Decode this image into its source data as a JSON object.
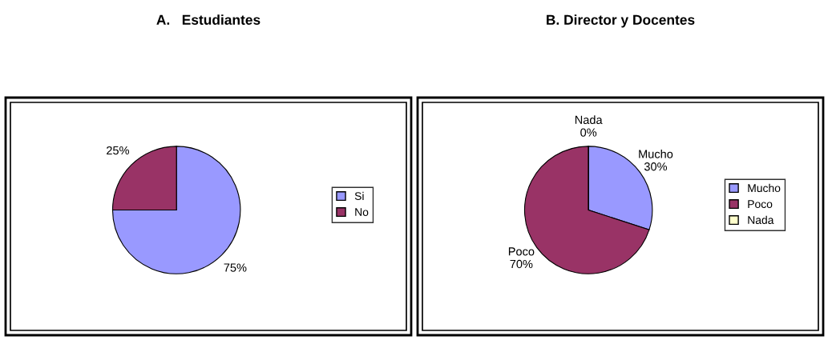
{
  "chart_data": [
    {
      "type": "pie",
      "title": "A.   Estudiantes",
      "categories": [
        "Si",
        "No"
      ],
      "values": [
        75,
        25
      ],
      "colors": [
        "#9999ff",
        "#993366"
      ],
      "value_labels": [
        "75%",
        "25%"
      ],
      "legend": "right"
    },
    {
      "type": "pie",
      "title": "B. Director y Docentes",
      "categories": [
        "Mucho",
        "Poco",
        "Nada"
      ],
      "values": [
        30,
        70,
        0
      ],
      "colors": [
        "#9999ff",
        "#993366",
        "#ffffcc"
      ],
      "value_labels": [
        "Mucho\n30%",
        "Poco\n70%",
        "Nada\n0%"
      ],
      "legend": "right"
    }
  ]
}
